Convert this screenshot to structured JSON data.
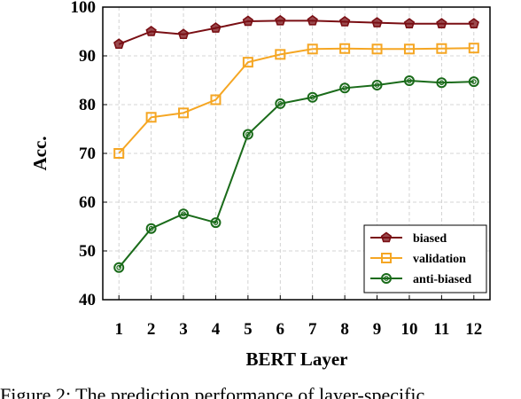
{
  "chart_data": {
    "type": "line",
    "x": [
      1,
      2,
      3,
      4,
      5,
      6,
      7,
      8,
      9,
      10,
      11,
      12
    ],
    "xlabel": "BERT Layer",
    "ylabel": "Acc.",
    "ylim": [
      40,
      100
    ],
    "yticks": [
      40,
      50,
      60,
      70,
      80,
      90,
      100
    ],
    "grid": true,
    "legend_position": "bottom-right",
    "series": [
      {
        "name": "biased",
        "color": "#7a0f14",
        "marker": "pentagon",
        "values": [
          92.4,
          95.0,
          94.4,
          95.7,
          97.1,
          97.2,
          97.2,
          97.0,
          96.8,
          96.6,
          96.6,
          96.6
        ]
      },
      {
        "name": "validation",
        "color": "#f5a623",
        "marker": "square",
        "values": [
          70.0,
          77.4,
          78.3,
          81.0,
          88.7,
          90.3,
          91.4,
          91.5,
          91.4,
          91.4,
          91.5,
          91.6
        ]
      },
      {
        "name": "anti-biased",
        "color": "#1a6b1a",
        "marker": "circle",
        "values": [
          46.6,
          54.6,
          57.6,
          55.8,
          73.9,
          80.2,
          81.5,
          83.4,
          84.0,
          84.9,
          84.5,
          84.7
        ]
      }
    ]
  },
  "caption": "Figure 2: The prediction performance of layer-specific"
}
